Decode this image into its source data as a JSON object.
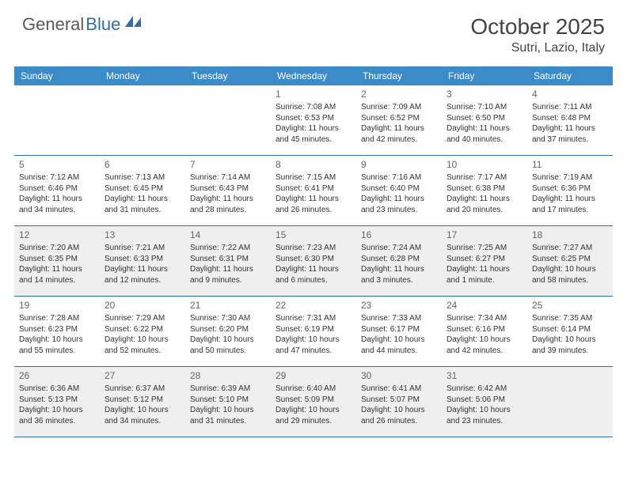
{
  "logo": {
    "text1": "General",
    "text2": "Blue",
    "color1": "#5a5a5a",
    "color2": "#2f6fa8"
  },
  "title": {
    "month": "October 2025",
    "location": "Sutri, Lazio, Italy"
  },
  "colors": {
    "header_bg": "#3b8bc9",
    "header_text": "#ffffff",
    "border": "#2f6fa8",
    "shaded": "#efefef",
    "background": "#ffffff",
    "text": "#333333"
  },
  "weekdays": [
    "Sunday",
    "Monday",
    "Tuesday",
    "Wednesday",
    "Thursday",
    "Friday",
    "Saturday"
  ],
  "weeks": [
    [
      {
        "num": "",
        "sunrise": "",
        "sunset": "",
        "daylight": ""
      },
      {
        "num": "",
        "sunrise": "",
        "sunset": "",
        "daylight": ""
      },
      {
        "num": "",
        "sunrise": "",
        "sunset": "",
        "daylight": ""
      },
      {
        "num": "1",
        "sunrise": "Sunrise: 7:08 AM",
        "sunset": "Sunset: 6:53 PM",
        "daylight": "Daylight: 11 hours and 45 minutes."
      },
      {
        "num": "2",
        "sunrise": "Sunrise: 7:09 AM",
        "sunset": "Sunset: 6:52 PM",
        "daylight": "Daylight: 11 hours and 42 minutes."
      },
      {
        "num": "3",
        "sunrise": "Sunrise: 7:10 AM",
        "sunset": "Sunset: 6:50 PM",
        "daylight": "Daylight: 11 hours and 40 minutes."
      },
      {
        "num": "4",
        "sunrise": "Sunrise: 7:11 AM",
        "sunset": "Sunset: 6:48 PM",
        "daylight": "Daylight: 11 hours and 37 minutes."
      }
    ],
    [
      {
        "num": "5",
        "sunrise": "Sunrise: 7:12 AM",
        "sunset": "Sunset: 6:46 PM",
        "daylight": "Daylight: 11 hours and 34 minutes."
      },
      {
        "num": "6",
        "sunrise": "Sunrise: 7:13 AM",
        "sunset": "Sunset: 6:45 PM",
        "daylight": "Daylight: 11 hours and 31 minutes."
      },
      {
        "num": "7",
        "sunrise": "Sunrise: 7:14 AM",
        "sunset": "Sunset: 6:43 PM",
        "daylight": "Daylight: 11 hours and 28 minutes."
      },
      {
        "num": "8",
        "sunrise": "Sunrise: 7:15 AM",
        "sunset": "Sunset: 6:41 PM",
        "daylight": "Daylight: 11 hours and 26 minutes."
      },
      {
        "num": "9",
        "sunrise": "Sunrise: 7:16 AM",
        "sunset": "Sunset: 6:40 PM",
        "daylight": "Daylight: 11 hours and 23 minutes."
      },
      {
        "num": "10",
        "sunrise": "Sunrise: 7:17 AM",
        "sunset": "Sunset: 6:38 PM",
        "daylight": "Daylight: 11 hours and 20 minutes."
      },
      {
        "num": "11",
        "sunrise": "Sunrise: 7:19 AM",
        "sunset": "Sunset: 6:36 PM",
        "daylight": "Daylight: 11 hours and 17 minutes."
      }
    ],
    [
      {
        "num": "12",
        "sunrise": "Sunrise: 7:20 AM",
        "sunset": "Sunset: 6:35 PM",
        "daylight": "Daylight: 11 hours and 14 minutes."
      },
      {
        "num": "13",
        "sunrise": "Sunrise: 7:21 AM",
        "sunset": "Sunset: 6:33 PM",
        "daylight": "Daylight: 11 hours and 12 minutes."
      },
      {
        "num": "14",
        "sunrise": "Sunrise: 7:22 AM",
        "sunset": "Sunset: 6:31 PM",
        "daylight": "Daylight: 11 hours and 9 minutes."
      },
      {
        "num": "15",
        "sunrise": "Sunrise: 7:23 AM",
        "sunset": "Sunset: 6:30 PM",
        "daylight": "Daylight: 11 hours and 6 minutes."
      },
      {
        "num": "16",
        "sunrise": "Sunrise: 7:24 AM",
        "sunset": "Sunset: 6:28 PM",
        "daylight": "Daylight: 11 hours and 3 minutes."
      },
      {
        "num": "17",
        "sunrise": "Sunrise: 7:25 AM",
        "sunset": "Sunset: 6:27 PM",
        "daylight": "Daylight: 11 hours and 1 minute."
      },
      {
        "num": "18",
        "sunrise": "Sunrise: 7:27 AM",
        "sunset": "Sunset: 6:25 PM",
        "daylight": "Daylight: 10 hours and 58 minutes."
      }
    ],
    [
      {
        "num": "19",
        "sunrise": "Sunrise: 7:28 AM",
        "sunset": "Sunset: 6:23 PM",
        "daylight": "Daylight: 10 hours and 55 minutes."
      },
      {
        "num": "20",
        "sunrise": "Sunrise: 7:29 AM",
        "sunset": "Sunset: 6:22 PM",
        "daylight": "Daylight: 10 hours and 52 minutes."
      },
      {
        "num": "21",
        "sunrise": "Sunrise: 7:30 AM",
        "sunset": "Sunset: 6:20 PM",
        "daylight": "Daylight: 10 hours and 50 minutes."
      },
      {
        "num": "22",
        "sunrise": "Sunrise: 7:31 AM",
        "sunset": "Sunset: 6:19 PM",
        "daylight": "Daylight: 10 hours and 47 minutes."
      },
      {
        "num": "23",
        "sunrise": "Sunrise: 7:33 AM",
        "sunset": "Sunset: 6:17 PM",
        "daylight": "Daylight: 10 hours and 44 minutes."
      },
      {
        "num": "24",
        "sunrise": "Sunrise: 7:34 AM",
        "sunset": "Sunset: 6:16 PM",
        "daylight": "Daylight: 10 hours and 42 minutes."
      },
      {
        "num": "25",
        "sunrise": "Sunrise: 7:35 AM",
        "sunset": "Sunset: 6:14 PM",
        "daylight": "Daylight: 10 hours and 39 minutes."
      }
    ],
    [
      {
        "num": "26",
        "sunrise": "Sunrise: 6:36 AM",
        "sunset": "Sunset: 5:13 PM",
        "daylight": "Daylight: 10 hours and 36 minutes."
      },
      {
        "num": "27",
        "sunrise": "Sunrise: 6:37 AM",
        "sunset": "Sunset: 5:12 PM",
        "daylight": "Daylight: 10 hours and 34 minutes."
      },
      {
        "num": "28",
        "sunrise": "Sunrise: 6:39 AM",
        "sunset": "Sunset: 5:10 PM",
        "daylight": "Daylight: 10 hours and 31 minutes."
      },
      {
        "num": "29",
        "sunrise": "Sunrise: 6:40 AM",
        "sunset": "Sunset: 5:09 PM",
        "daylight": "Daylight: 10 hours and 29 minutes."
      },
      {
        "num": "30",
        "sunrise": "Sunrise: 6:41 AM",
        "sunset": "Sunset: 5:07 PM",
        "daylight": "Daylight: 10 hours and 26 minutes."
      },
      {
        "num": "31",
        "sunrise": "Sunrise: 6:42 AM",
        "sunset": "Sunset: 5:06 PM",
        "daylight": "Daylight: 10 hours and 23 minutes."
      },
      {
        "num": "",
        "sunrise": "",
        "sunset": "",
        "daylight": ""
      }
    ]
  ],
  "shaded_weeks": [
    false,
    false,
    true,
    false,
    true
  ]
}
